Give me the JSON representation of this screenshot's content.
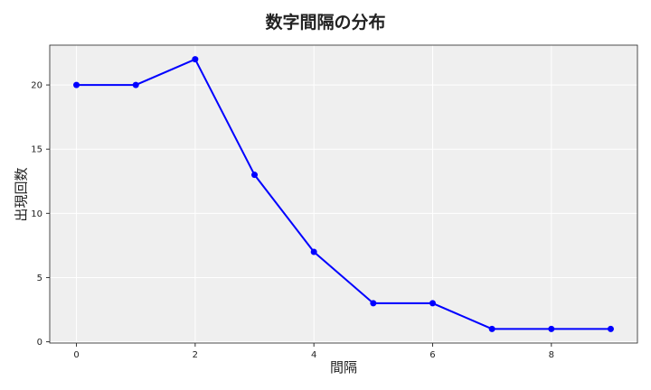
{
  "chart_data": {
    "type": "line",
    "title": "数字間隔の分布",
    "xlabel": "間隔",
    "ylabel": "出現回数",
    "x": [
      0,
      1,
      2,
      3,
      4,
      5,
      6,
      7,
      8,
      9
    ],
    "series": [
      {
        "values": [
          20,
          20,
          22,
          13,
          7,
          3,
          3,
          1,
          1,
          1
        ],
        "color": "#0000ff"
      }
    ],
    "xlim": [
      -0.45,
      9.45
    ],
    "ylim": [
      -0.1,
      23.1
    ],
    "xticks": [
      0,
      2,
      4,
      6,
      8
    ],
    "yticks": [
      0,
      5,
      10,
      15,
      20
    ],
    "grid": true,
    "background": "#efefef"
  }
}
